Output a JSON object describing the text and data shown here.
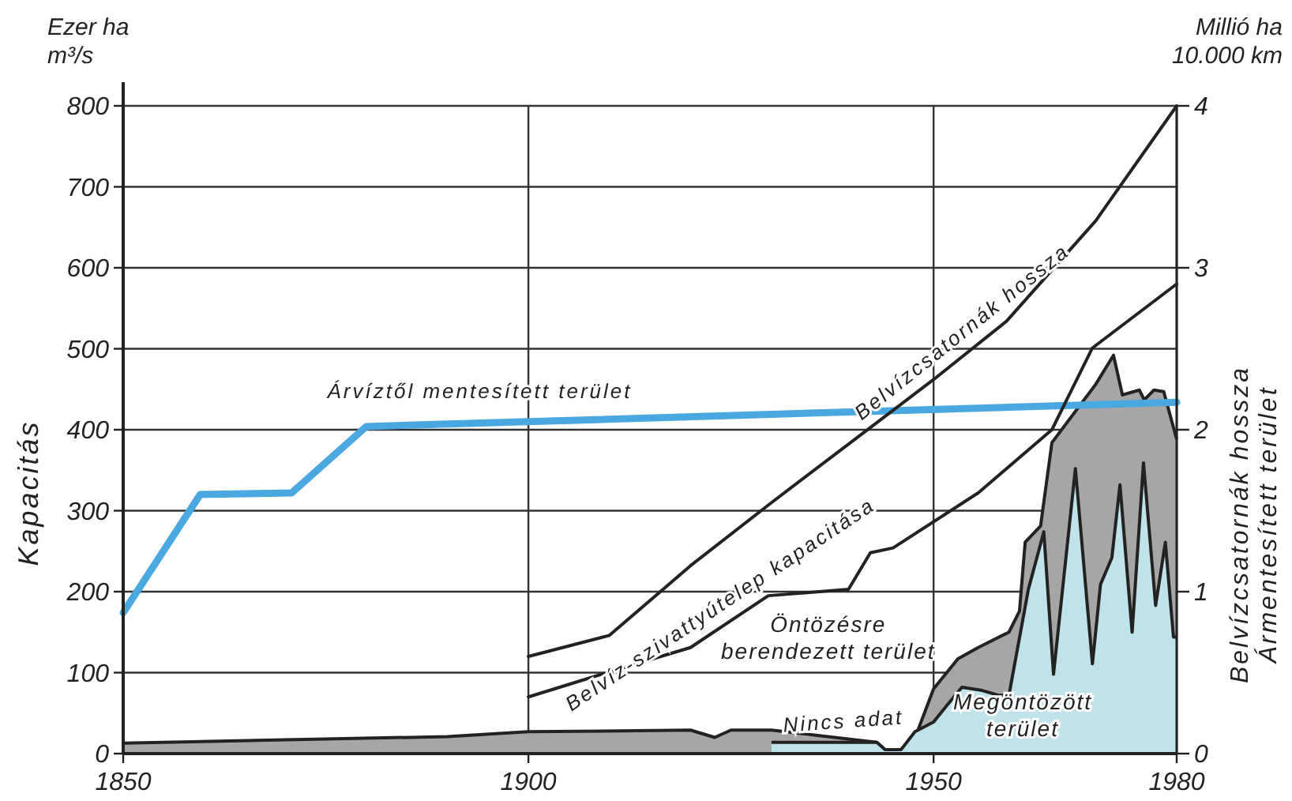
{
  "chart_data": {
    "type": "line",
    "ylabel": "Kapacitás",
    "y2label": "Belvízcsatornák hossza\nÁrmentesített terület",
    "xlim": [
      1850,
      1980
    ],
    "xticks": [
      1850,
      1900,
      1950,
      1980
    ],
    "ylim": [
      0,
      800
    ],
    "yticks": [
      0,
      100,
      200,
      300,
      400,
      500,
      600,
      700,
      800
    ],
    "y2lim": [
      0,
      4
    ],
    "y2ticks": [
      0,
      1,
      2,
      3,
      4
    ],
    "grid": true,
    "annotations": [
      "Ezer ha",
      "m³/s",
      "Millió ha",
      "10.000 km",
      {
        "text": "Nincs adat",
        "x": 1939,
        "y": 20
      }
    ],
    "series": [
      {
        "name": "Öntözésre berendezett terület",
        "type": "area",
        "color": "#a6a6a6",
        "x": [
          1850,
          1870,
          1890,
          1900,
          1920,
          1923,
          1925,
          1930,
          1943,
          1944,
          1946,
          1948,
          1950,
          1953,
          1955.5,
          1959.3,
          1960.6,
          1961.3,
          1963.2,
          1964.6,
          1970,
          1972.2,
          1973.3,
          1975.4,
          1976,
          1977.2,
          1978.4,
          1980
        ],
        "values": [
          13,
          17,
          21,
          27,
          29,
          20,
          29,
          29,
          14,
          5,
          5,
          27,
          80,
          117,
          131,
          150,
          176,
          261,
          281,
          384,
          456,
          492,
          443,
          449,
          437,
          449,
          447,
          388
        ]
      },
      {
        "name": "Megöntözött terület",
        "type": "area",
        "color": "#bfe3ea",
        "x": [
          1930,
          1943,
          1944,
          1946,
          1947.7,
          1950,
          1951.6,
          1953.5,
          1956,
          1958,
          1959.3,
          1961.7,
          1963.6,
          1964.8,
          1967.5,
          1969.6,
          1970.6,
          1972,
          1973,
          1974.5,
          1975.9,
          1977.4,
          1978.6,
          1979.6,
          1980
        ],
        "values": [
          14,
          14,
          5,
          5,
          27,
          39,
          59,
          82,
          78,
          72,
          72,
          203,
          274,
          98,
          352,
          111,
          209,
          242,
          332,
          150,
          359,
          183,
          261,
          144,
          144
        ]
      },
      {
        "name": "Árvíztől mentesített terület",
        "axis": "y2",
        "color": "#4aa8e0",
        "x": [
          1850,
          1859.5,
          1870.8,
          1880,
          1900,
          1980
        ],
        "values": [
          0.87,
          1.6,
          1.61,
          2.02,
          2.05,
          2.17
        ]
      },
      {
        "name": "Belvízcsatornák hossza",
        "axis": "y2",
        "color": "#222222",
        "x": [
          1900,
          1910,
          1920,
          1930,
          1940,
          1950,
          1959,
          1970,
          1980
        ],
        "values": [
          0.6,
          0.73,
          1.16,
          1.55,
          1.93,
          2.31,
          2.67,
          3.29,
          4.0
        ]
      },
      {
        "name": "Belvíz-szivattyútelep kapacitása",
        "color": "#222222",
        "x": [
          1900,
          1910,
          1920,
          1929.6,
          1939.5,
          1942.2,
          1945,
          1955.5,
          1964.6,
          1969.6,
          1980
        ],
        "values": [
          70,
          101,
          131,
          195,
          203,
          248,
          254,
          322,
          400,
          501,
          580
        ]
      }
    ]
  }
}
